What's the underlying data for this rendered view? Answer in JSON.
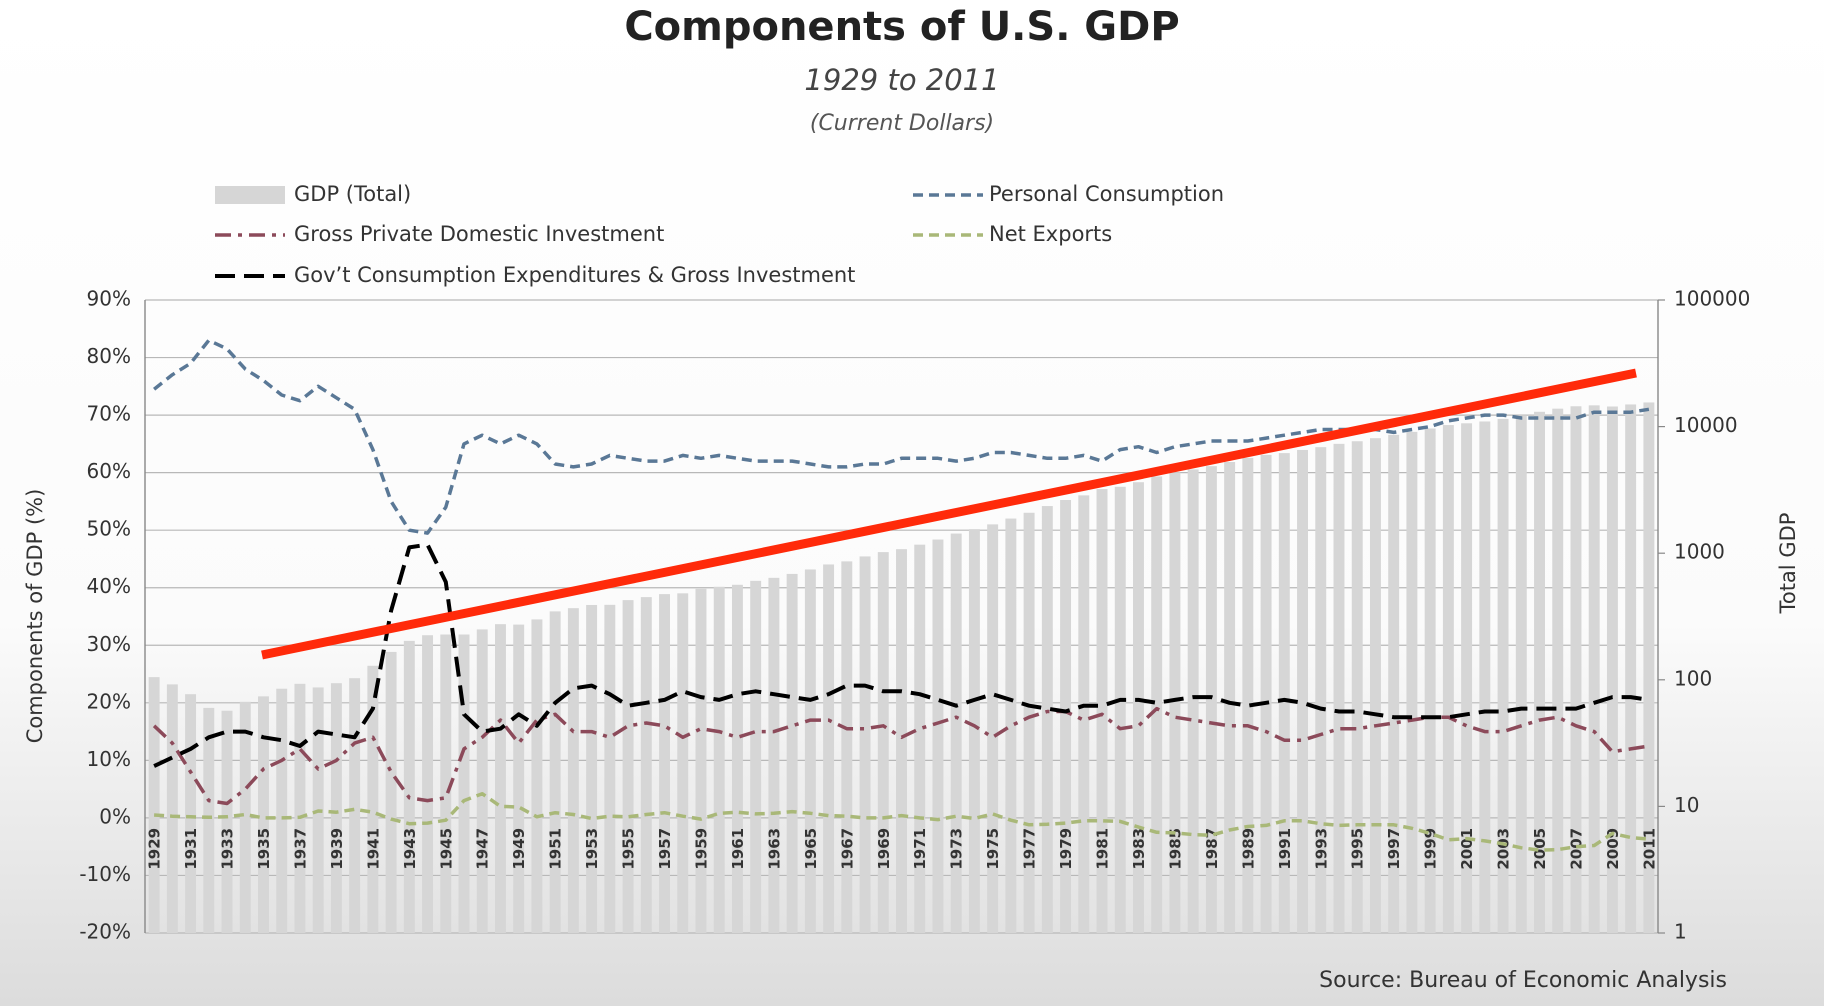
{
  "chart_data": {
    "type": "combo",
    "title": "Components of U.S. GDP",
    "subtitle": "1929 to 2011",
    "note": "(Current Dollars)",
    "source": "Source: Bureau of Economic Analysis",
    "y_label": "Components of GDP (%)",
    "y2_label": "Total GDP",
    "ylim": [
      -20,
      90
    ],
    "yticks": [
      {
        "value": -20,
        "label": "-20%"
      },
      {
        "value": -10,
        "label": "-10%"
      },
      {
        "value": 0,
        "label": "0%"
      },
      {
        "value": 10,
        "label": "10%"
      },
      {
        "value": 20,
        "label": "20%"
      },
      {
        "value": 30,
        "label": "30%"
      },
      {
        "value": 40,
        "label": "40%"
      },
      {
        "value": 50,
        "label": "50%"
      },
      {
        "value": 60,
        "label": "60%"
      },
      {
        "value": 70,
        "label": "70%"
      },
      {
        "value": 80,
        "label": "80%"
      },
      {
        "value": 90,
        "label": "90%"
      }
    ],
    "y2lim": [
      1,
      100000
    ],
    "y2ticks": [
      1,
      10,
      100,
      1000,
      10000,
      100000
    ],
    "y2log": true,
    "grid": true,
    "categories": [
      "1929",
      null,
      "1931",
      null,
      "1933",
      null,
      "1935",
      null,
      "1937",
      null,
      "1939",
      null,
      "1941",
      null,
      "1943",
      null,
      "1945",
      null,
      "1947",
      null,
      "1949",
      null,
      "1951",
      null,
      "1953",
      null,
      "1955",
      null,
      "1957",
      null,
      "1959",
      null,
      "1961",
      null,
      "1963",
      null,
      "1965",
      null,
      "1967",
      null,
      "1969",
      null,
      "1971",
      null,
      "1973",
      null,
      "1975",
      null,
      "1977",
      null,
      "1979",
      null,
      "1981",
      null,
      "1983",
      null,
      "1985",
      null,
      "1987",
      null,
      "1989",
      null,
      "1991",
      null,
      "1993",
      null,
      "1995",
      null,
      "1997",
      null,
      "1999",
      null,
      "2001",
      null,
      "2003",
      null,
      "2005",
      null,
      "2007",
      null,
      "2009",
      null,
      "2011"
    ],
    "series": [
      {
        "name": "GDP (Total)",
        "type": "bar",
        "axis": "y2",
        "color": "#d6d6d6",
        "values": [
          105,
          92,
          77,
          60,
          57,
          67,
          74,
          85,
          93,
          87,
          94,
          103,
          129,
          166,
          203,
          225,
          228,
          228,
          250,
          275,
          273,
          300,
          347,
          368,
          390,
          391,
          426,
          450,
          475,
          482,
          523,
          543,
          563,
          605,
          639,
          686,
          744,
          815,
          862,
          943,
          1020,
          1076,
          1168,
          1282,
          1429,
          1549,
          1689,
          1878,
          2086,
          2357,
          2632,
          2863,
          3211,
          3345,
          3638,
          4041,
          4347,
          4590,
          4870,
          5253,
          5658,
          5980,
          6174,
          6539,
          6879,
          7309,
          7664,
          8100,
          8609,
          9089,
          9661,
          10285,
          10622,
          10978,
          11511,
          12275,
          13094,
          13856,
          14478,
          14719,
          14419,
          14964,
          15518
        ]
      },
      {
        "name": "Personal Consumption",
        "type": "line",
        "style": "dash",
        "color": "#5a7896",
        "values": [
          74.5,
          77,
          79,
          83,
          81.5,
          78,
          76,
          73.5,
          72.5,
          75,
          73,
          71,
          64,
          55,
          50,
          49.5,
          54,
          65,
          66.5,
          65,
          66.5,
          65,
          61.5,
          61,
          61.5,
          63,
          62.5,
          62,
          62,
          63,
          62.5,
          63,
          62.5,
          62,
          62,
          62,
          61.5,
          61,
          61,
          61.5,
          61.5,
          62.5,
          62.5,
          62.5,
          62,
          62.5,
          63.5,
          63.5,
          63,
          62.5,
          62.5,
          63,
          62,
          64,
          64.5,
          63.5,
          64.5,
          65,
          65.5,
          65.5,
          65.5,
          66,
          66.5,
          67,
          67.5,
          67.5,
          67.5,
          67.5,
          67,
          67.5,
          68,
          69,
          69.5,
          70,
          70,
          69.5,
          69.5,
          69.5,
          69.5,
          70.5,
          70.5,
          70.5,
          71
        ]
      },
      {
        "name": "Gross Private Domestic Investment",
        "type": "line",
        "style": "dashdot",
        "color": "#8c4a5a",
        "values": [
          16,
          13,
          8,
          3,
          2.5,
          5,
          8.5,
          10,
          12,
          8.5,
          10,
          13,
          14,
          8,
          3.5,
          3,
          3.5,
          12,
          14,
          17,
          13,
          17,
          18,
          15,
          15,
          14,
          16,
          16.5,
          16,
          14,
          15.5,
          15,
          14,
          15,
          15,
          16,
          17,
          17,
          15.5,
          15.5,
          16,
          14,
          15.5,
          16.5,
          17.5,
          16,
          14,
          16,
          17.5,
          18.5,
          18.5,
          17,
          18,
          15.5,
          16,
          19,
          17.5,
          17,
          16.5,
          16,
          16,
          15,
          13.5,
          13.5,
          14.5,
          15.5,
          15.5,
          16,
          16.5,
          17,
          17.5,
          17.5,
          16,
          15,
          15,
          16,
          17,
          17.5,
          16,
          15,
          11.5,
          12,
          12.5
        ]
      },
      {
        "name": "Net Exports",
        "type": "line",
        "style": "dash",
        "color": "#a9b878",
        "values": [
          0.5,
          0.3,
          0.2,
          0.1,
          0.2,
          0.6,
          0,
          0,
          0.1,
          1.2,
          1,
          1.5,
          1,
          -0.2,
          -1,
          -0.9,
          -0.4,
          3,
          4.2,
          2,
          1.9,
          0.2,
          0.9,
          0.6,
          -0.1,
          0.3,
          0.2,
          0.6,
          0.9,
          0.3,
          -0.2,
          0.8,
          1,
          0.7,
          0.8,
          1.1,
          0.8,
          0.4,
          0.3,
          0,
          0,
          0.4,
          0,
          -0.3,
          0.3,
          -0.1,
          0.7,
          -0.4,
          -1.2,
          -1.1,
          -0.9,
          -0.5,
          -0.5,
          -0.6,
          -1.6,
          -2.5,
          -2.6,
          -2.9,
          -3,
          -2.1,
          -1.5,
          -1.3,
          -0.5,
          -0.5,
          -1,
          -1.3,
          -1.2,
          -1.2,
          -1.2,
          -1.8,
          -2.7,
          -3.8,
          -3.6,
          -4,
          -4.5,
          -5.2,
          -5.6,
          -5.5,
          -5,
          -4.8,
          -2.7,
          -3.4,
          -3.7
        ]
      },
      {
        "name": "Gov’t Consumption Expenditures & Gross Investment",
        "type": "line",
        "style": "longdash",
        "color": "#000000",
        "values": [
          9,
          10.5,
          12,
          14,
          15,
          15,
          14,
          13.5,
          12.5,
          15,
          14.5,
          14,
          19,
          36,
          47,
          47.5,
          41,
          18,
          15,
          15.5,
          18,
          16,
          20,
          22.5,
          23,
          21.5,
          19.5,
          20,
          20.5,
          22,
          21,
          20.5,
          21.5,
          22,
          21.5,
          21,
          20.5,
          21.5,
          23,
          23,
          22,
          22,
          21.5,
          20.5,
          19.5,
          20.5,
          21.5,
          20.5,
          19.5,
          19,
          18.5,
          19.5,
          19.5,
          20.5,
          20.5,
          20,
          20.5,
          21,
          21,
          20,
          19.5,
          20,
          20.5,
          20,
          19,
          18.5,
          18.5,
          18,
          17.5,
          17.5,
          17.5,
          17.5,
          18,
          18.5,
          18.5,
          19,
          19,
          19,
          19,
          20,
          21,
          21,
          20.5
        ]
      }
    ]
  }
}
